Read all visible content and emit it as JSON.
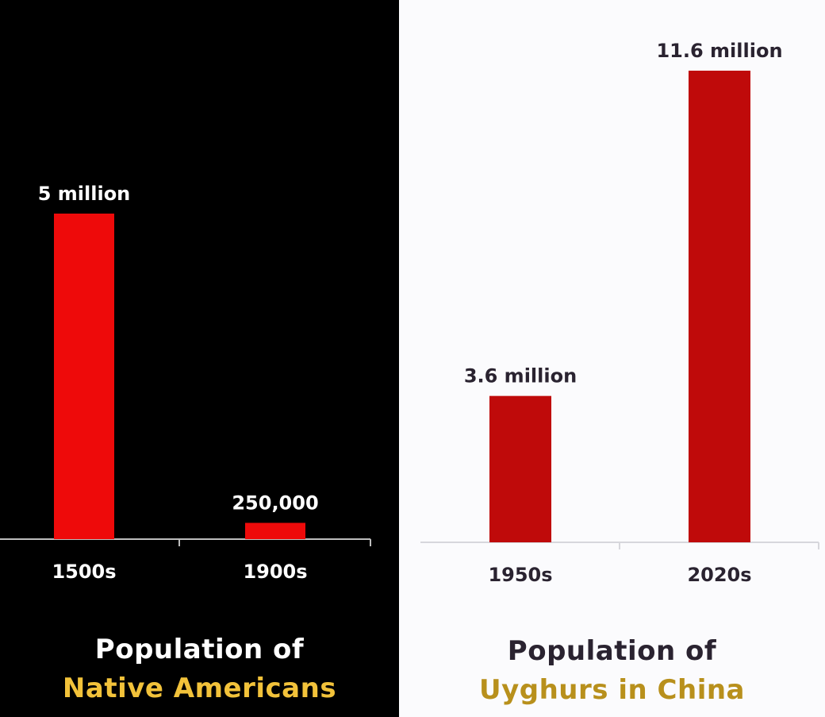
{
  "chart_data": [
    {
      "type": "bar",
      "categories": [
        "1500s",
        "1900s"
      ],
      "values": [
        5000000,
        250000
      ],
      "data_labels": [
        "5 million",
        "250,000"
      ],
      "title_line1": "Population of",
      "title_line2": "Native Americans",
      "ylim": [
        0,
        5000000
      ],
      "bar_color": "#ee0a0a",
      "background": "#000000",
      "text_color": "#ffffff"
    },
    {
      "type": "bar",
      "categories": [
        "1950s",
        "2020s"
      ],
      "values": [
        3600000,
        11600000
      ],
      "data_labels": [
        "3.6 million",
        "11.6 million"
      ],
      "title_line1": "Population of",
      "title_line2": "Uyghurs in China",
      "ylim": [
        0,
        11600000
      ],
      "bar_color": "#bf0a0a",
      "background": "#fbfbfd",
      "text_color": "#2a2330"
    }
  ]
}
